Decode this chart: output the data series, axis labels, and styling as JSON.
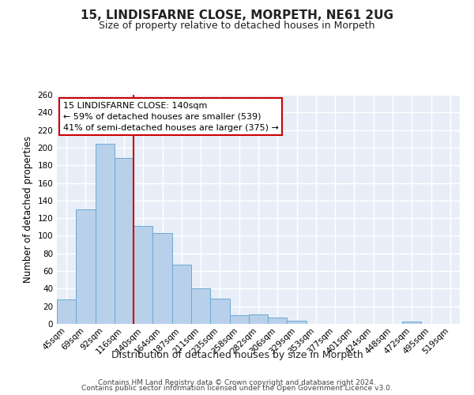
{
  "title": "15, LINDISFARNE CLOSE, MORPETH, NE61 2UG",
  "subtitle": "Size of property relative to detached houses in Morpeth",
  "xlabel": "Distribution of detached houses by size in Morpeth",
  "ylabel": "Number of detached properties",
  "footnote1": "Contains HM Land Registry data © Crown copyright and database right 2024.",
  "footnote2": "Contains public sector information licensed under the Open Government Licence v3.0.",
  "bar_labels": [
    "45sqm",
    "69sqm",
    "92sqm",
    "116sqm",
    "140sqm",
    "164sqm",
    "187sqm",
    "211sqm",
    "235sqm",
    "258sqm",
    "282sqm",
    "306sqm",
    "329sqm",
    "353sqm",
    "377sqm",
    "401sqm",
    "424sqm",
    "448sqm",
    "472sqm",
    "495sqm",
    "519sqm"
  ],
  "bar_values": [
    28,
    130,
    204,
    188,
    111,
    103,
    67,
    40,
    29,
    10,
    11,
    7,
    4,
    0,
    0,
    0,
    0,
    0,
    3,
    0,
    0
  ],
  "bar_color": "#b8d0ea",
  "bar_edge_color": "#6aaad4",
  "vline_x_index": 4,
  "vline_color": "#cc0000",
  "annotation_title": "15 LINDISFARNE CLOSE: 140sqm",
  "annotation_line1": "← 59% of detached houses are smaller (539)",
  "annotation_line2": "41% of semi-detached houses are larger (375) →",
  "ylim": [
    0,
    260
  ],
  "yticks": [
    0,
    20,
    40,
    60,
    80,
    100,
    120,
    140,
    160,
    180,
    200,
    220,
    240,
    260
  ],
  "bg_color": "#e8eef8",
  "title_fontsize": 11,
  "subtitle_fontsize": 9,
  "ylabel_fontsize": 8.5,
  "xlabel_fontsize": 9,
  "tick_fontsize": 7.5,
  "annot_fontsize": 8
}
